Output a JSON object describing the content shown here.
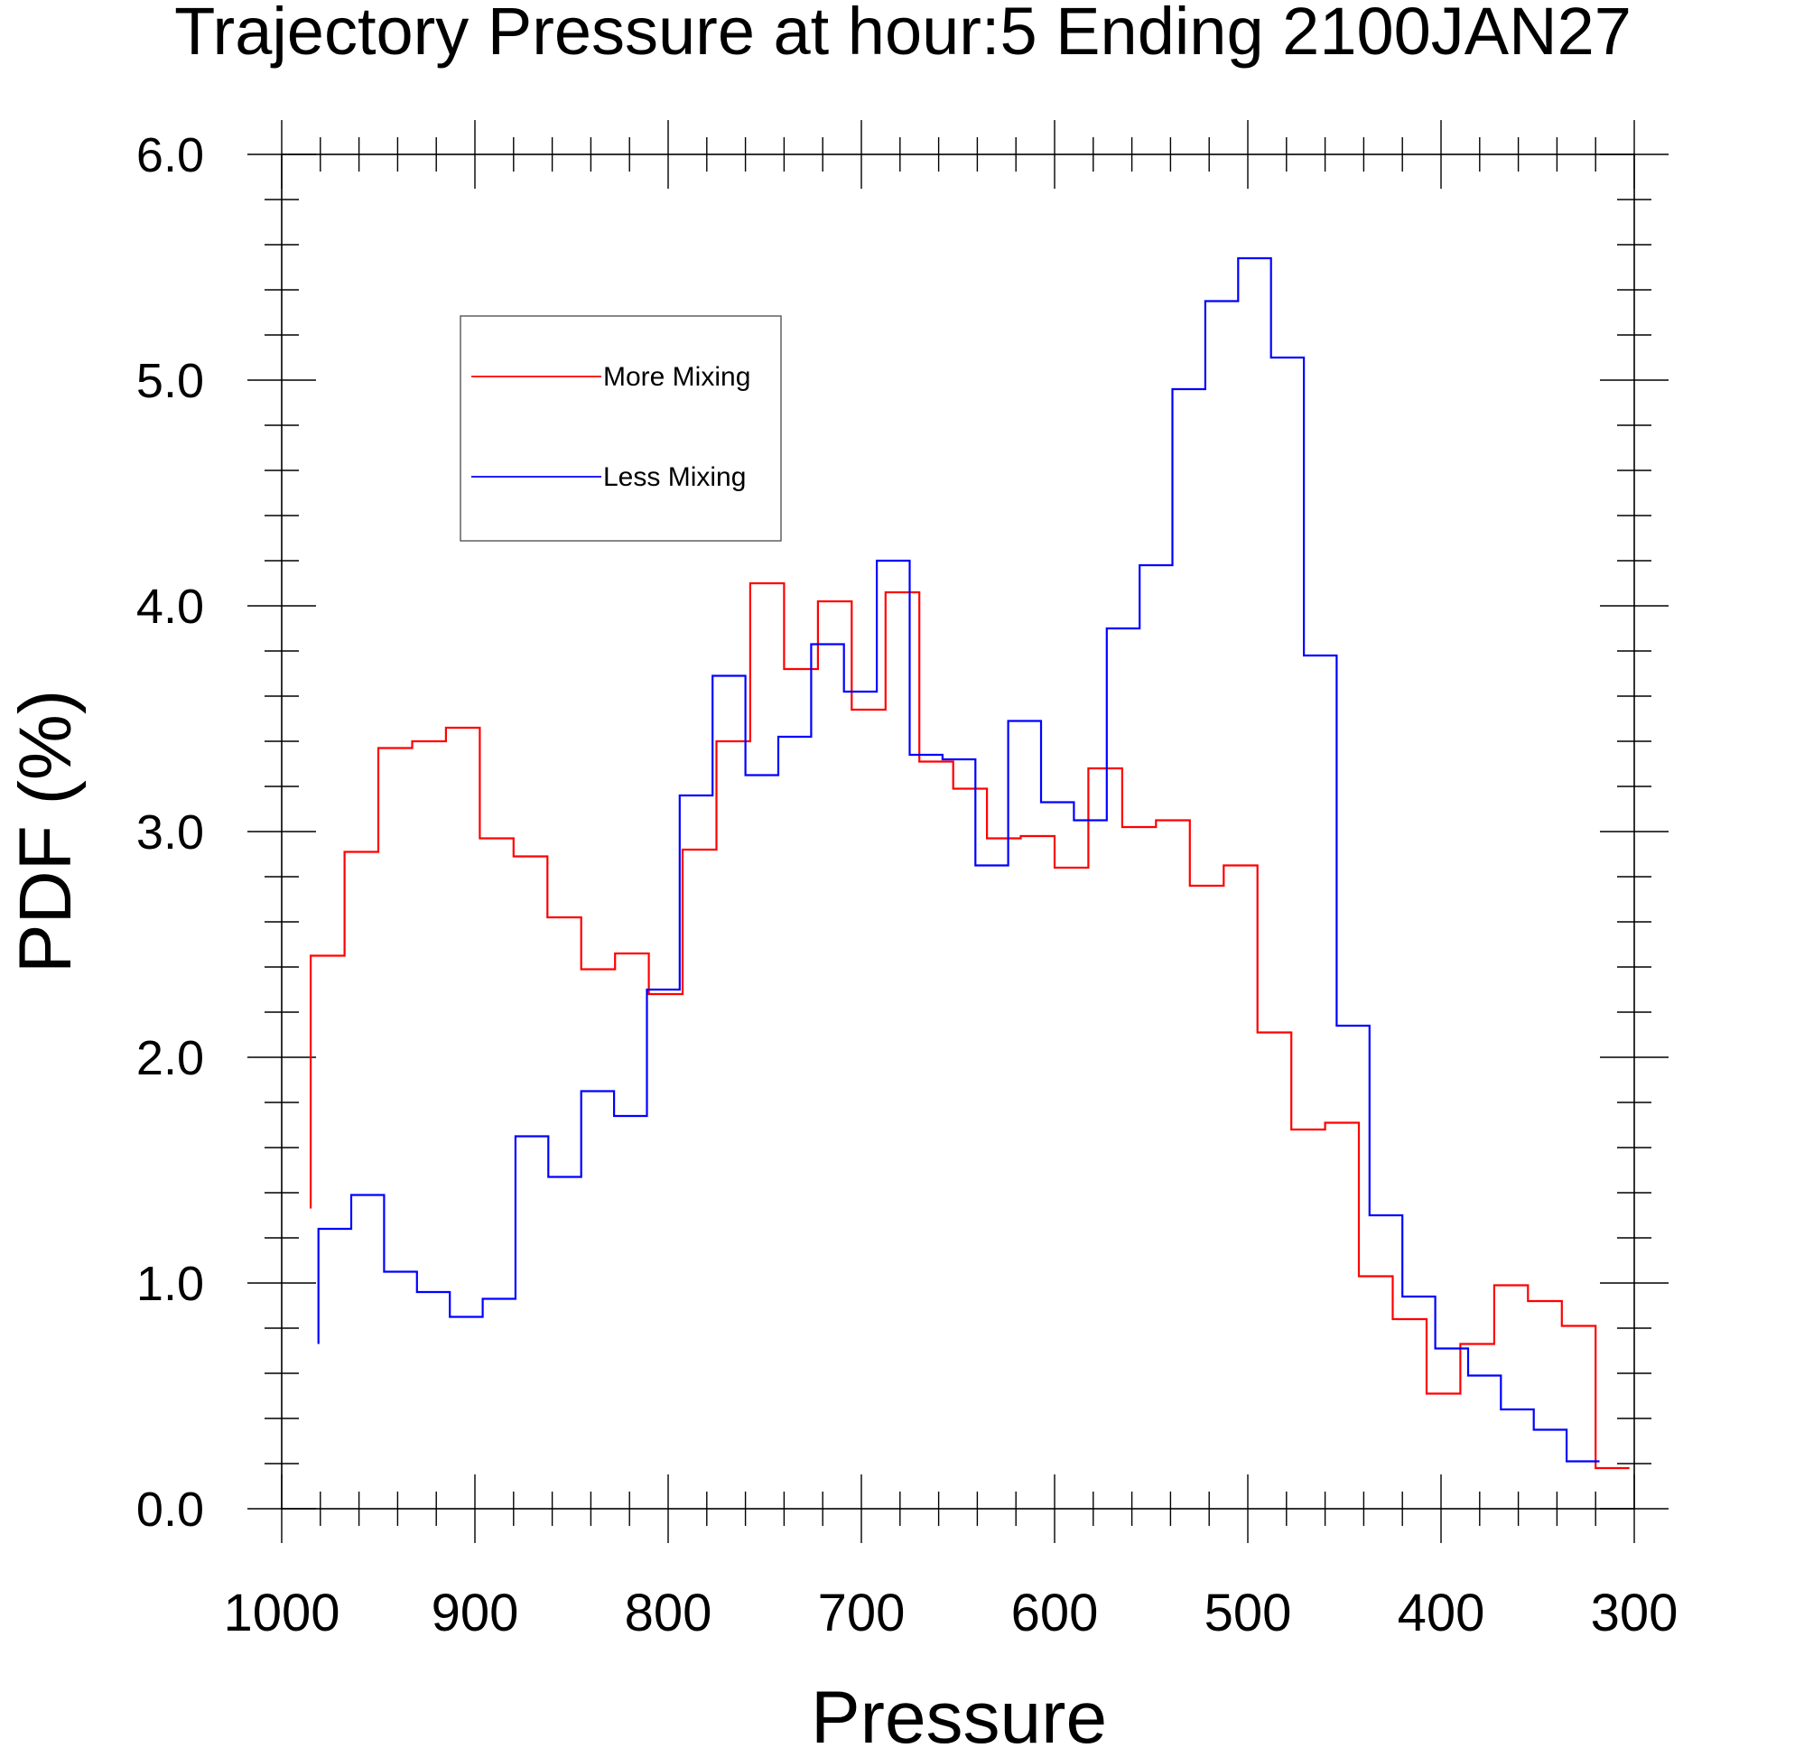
{
  "chart_data": {
    "type": "line",
    "step": "histogram",
    "title": "Trajectory Pressure at hour:5 Ending 2100JAN27",
    "xlabel": "Pressure",
    "ylabel": "PDF (%)",
    "xlim": [
      1000,
      300
    ],
    "ylim": [
      0,
      6
    ],
    "x_reversed": true,
    "x_ticks": [
      1000,
      900,
      800,
      700,
      600,
      500,
      400,
      300
    ],
    "x_tick_labels": [
      "1000",
      "900",
      "800",
      "700",
      "600",
      "500",
      "400",
      "300"
    ],
    "y_ticks": [
      0,
      1,
      2,
      3,
      4,
      5,
      6
    ],
    "y_tick_labels": [
      "0.0",
      "1.0",
      "2.0",
      "3.0",
      "4.0",
      "5.0",
      "6.0"
    ],
    "legend_position": "top-left",
    "series": [
      {
        "name": "More Mixing",
        "color": "#ff0000",
        "bin_edges": [
          985,
          967.5,
          950,
          932.5,
          915,
          897.5,
          880,
          862.5,
          845,
          827.5,
          810,
          792.5,
          775,
          757.5,
          740,
          722.5,
          705,
          687.5,
          670,
          652.5,
          635,
          617.5,
          600,
          582.5,
          565,
          547.5,
          530,
          512.5,
          495,
          477.5,
          460,
          442.5,
          425,
          407.5,
          390,
          372.5,
          355,
          337.5,
          320,
          302.5
        ],
        "start_value": 1.33,
        "values": [
          2.45,
          2.91,
          3.37,
          3.4,
          3.46,
          2.97,
          2.89,
          2.62,
          2.39,
          2.46,
          2.28,
          2.92,
          3.4,
          4.1,
          3.72,
          4.02,
          3.54,
          4.06,
          3.31,
          3.19,
          2.97,
          2.98,
          2.84,
          3.28,
          3.02,
          3.05,
          2.76,
          2.85,
          2.11,
          1.68,
          1.71,
          1.03,
          0.84,
          0.51,
          0.73,
          0.99,
          0.92,
          0.81,
          0.18
        ]
      },
      {
        "name": "Less Mixing",
        "color": "#0000ff",
        "bin_edges": [
          981,
          964,
          947,
          930,
          913,
          896,
          879,
          862,
          845,
          828,
          811,
          794,
          777,
          760,
          743,
          726,
          709,
          692,
          675,
          658,
          641,
          624,
          607,
          590,
          573,
          556,
          539,
          522,
          505,
          488,
          471,
          454,
          437,
          420,
          403,
          386,
          369,
          352,
          335,
          318
        ],
        "start_value": 0.73,
        "values": [
          1.24,
          1.39,
          1.05,
          0.96,
          0.85,
          0.93,
          1.65,
          1.47,
          1.85,
          1.74,
          2.3,
          3.16,
          3.69,
          3.25,
          3.42,
          3.83,
          3.62,
          4.2,
          3.34,
          3.32,
          2.85,
          3.49,
          3.13,
          3.05,
          3.9,
          4.18,
          4.96,
          5.35,
          5.54,
          5.1,
          3.78,
          2.14,
          1.3,
          0.94,
          0.71,
          0.59,
          0.44,
          0.35,
          0.21
        ]
      }
    ]
  }
}
